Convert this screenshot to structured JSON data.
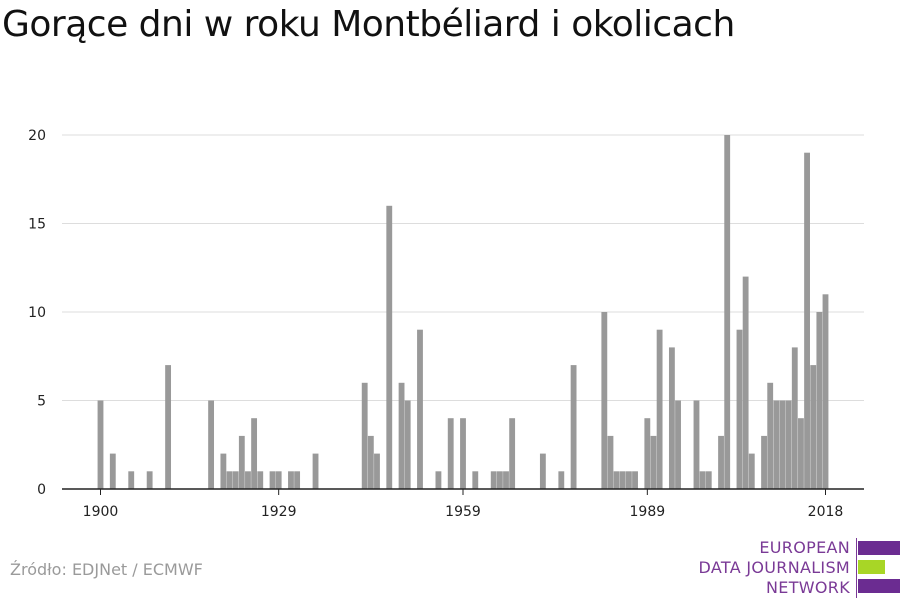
{
  "title": "Gorące dni w roku Montbéliard i okolicach",
  "source": "Źródło: EDJNet / ECMWF",
  "logo": {
    "lines": [
      "EUROPEAN",
      "DATA JOURNALISM",
      "NETWORK"
    ],
    "colors": {
      "purple": "#6b2c91",
      "green": "#a8d626"
    }
  },
  "colors": {
    "bar": "#999999",
    "grid": "#dddddd",
    "axis": "#222222",
    "text": "#222222"
  },
  "chart_data": {
    "type": "bar",
    "title": "Gorące dni w roku Montbéliard i okolicach",
    "xlabel": "",
    "ylabel": "",
    "ylim": [
      0,
      20
    ],
    "yticks": [
      0,
      5,
      10,
      15,
      20
    ],
    "xticks": [
      1900,
      1929,
      1959,
      1989,
      2018
    ],
    "xlim": [
      1900,
      2018
    ],
    "grid": true,
    "x": [
      1900,
      1901,
      1902,
      1903,
      1904,
      1905,
      1906,
      1907,
      1908,
      1909,
      1910,
      1911,
      1912,
      1913,
      1914,
      1915,
      1916,
      1917,
      1918,
      1919,
      1920,
      1921,
      1922,
      1923,
      1924,
      1925,
      1926,
      1927,
      1928,
      1929,
      1930,
      1931,
      1932,
      1933,
      1934,
      1935,
      1936,
      1937,
      1938,
      1939,
      1940,
      1941,
      1942,
      1943,
      1944,
      1945,
      1946,
      1947,
      1948,
      1949,
      1950,
      1951,
      1952,
      1953,
      1954,
      1955,
      1956,
      1957,
      1958,
      1959,
      1960,
      1961,
      1962,
      1963,
      1964,
      1965,
      1966,
      1967,
      1968,
      1969,
      1970,
      1971,
      1972,
      1973,
      1974,
      1975,
      1976,
      1977,
      1978,
      1979,
      1980,
      1981,
      1982,
      1983,
      1984,
      1985,
      1986,
      1987,
      1988,
      1989,
      1990,
      1991,
      1992,
      1993,
      1994,
      1995,
      1996,
      1997,
      1998,
      1999,
      2000,
      2001,
      2002,
      2003,
      2004,
      2005,
      2006,
      2007,
      2008,
      2009,
      2010,
      2011,
      2012,
      2013,
      2014,
      2015,
      2016,
      2017,
      2018
    ],
    "values": [
      5,
      0,
      2,
      0,
      0,
      1,
      0,
      0,
      1,
      0,
      0,
      7,
      0,
      0,
      0,
      0,
      0,
      0,
      5,
      0,
      2,
      1,
      1,
      3,
      1,
      4,
      1,
      0,
      1,
      1,
      0,
      1,
      1,
      0,
      0,
      2,
      0,
      0,
      0,
      0,
      0,
      0,
      0,
      6,
      3,
      2,
      0,
      16,
      0,
      6,
      5,
      0,
      9,
      0,
      0,
      1,
      0,
      4,
      0,
      4,
      0,
      1,
      0,
      0,
      1,
      1,
      1,
      4,
      0,
      0,
      0,
      0,
      2,
      0,
      0,
      1,
      0,
      7,
      0,
      0,
      0,
      0,
      10,
      3,
      1,
      1,
      1,
      1,
      0,
      4,
      3,
      9,
      0,
      8,
      5,
      0,
      0,
      5,
      1,
      1,
      0,
      3,
      20,
      0,
      9,
      12,
      2,
      0,
      3,
      6,
      5,
      5,
      5,
      8,
      4,
      19,
      7,
      10,
      11
    ]
  }
}
